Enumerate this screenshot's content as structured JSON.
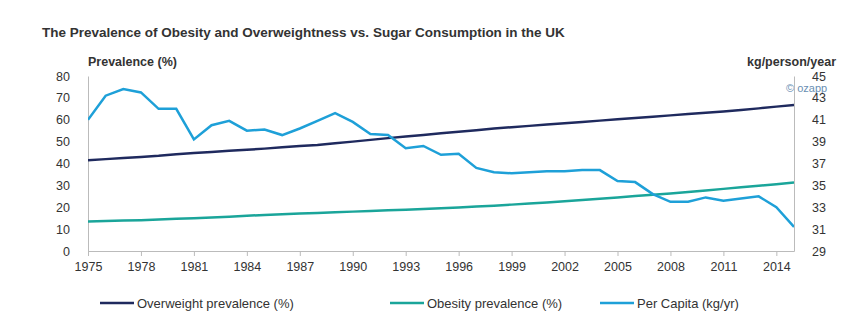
{
  "chart_data": {
    "type": "line",
    "title": "The Prevalence of Obesity and Overweightness vs. Sugar Consumption in the UK",
    "y_label": "Prevalence (%)",
    "y2_label": "kg/person/year",
    "annotations": [
      "© ozapp"
    ],
    "x": [
      1975,
      1976,
      1977,
      1978,
      1979,
      1980,
      1981,
      1982,
      1983,
      1984,
      1985,
      1986,
      1987,
      1988,
      1989,
      1990,
      1991,
      1992,
      1993,
      1994,
      1995,
      1996,
      1997,
      1998,
      1999,
      2000,
      2001,
      2002,
      2003,
      2004,
      2005,
      2006,
      2007,
      2008,
      2009,
      2010,
      2011,
      2012,
      2013,
      2014,
      2015
    ],
    "series": [
      {
        "name": "Overweight prevalence (%)",
        "color": "#1f2a5e",
        "values": [
          41.5,
          42,
          42.5,
          43,
          43.5,
          44.2,
          44.8,
          45.3,
          45.8,
          46.3,
          46.8,
          47.4,
          48,
          48.5,
          49.3,
          50,
          50.8,
          51.6,
          52.3,
          53,
          53.8,
          54.5,
          55.2,
          56,
          56.6,
          57.2,
          57.8,
          58.4,
          59,
          59.6,
          60.2,
          60.8,
          61.4,
          62,
          62.6,
          63.2,
          63.8,
          64.5,
          65.2,
          66,
          66.7
        ]
      },
      {
        "name": "Obesity prevalence (%)",
        "color": "#1aa59a",
        "values": [
          13.5,
          13.7,
          13.9,
          14.1,
          14.4,
          14.7,
          15,
          15.3,
          15.7,
          16.1,
          16.5,
          16.8,
          17.1,
          17.4,
          17.7,
          18,
          18.3,
          18.6,
          18.9,
          19.2,
          19.5,
          19.9,
          20.3,
          20.7,
          21.2,
          21.7,
          22.2,
          22.7,
          23.3,
          23.9,
          24.5,
          25.1,
          25.7,
          26.3,
          27,
          27.7,
          28.4,
          29.1,
          29.8,
          30.5,
          31.3
        ]
      },
      {
        "name": "Per Capita (kg/yr)",
        "color": "#1ea0d8",
        "axis": "y2",
        "values": [
          41.0,
          43.2,
          43.8,
          43.5,
          42.0,
          42.0,
          39.2,
          40.5,
          40.9,
          40.0,
          40.1,
          39.6,
          40.2,
          40.9,
          41.6,
          40.8,
          39.7,
          39.6,
          38.4,
          38.6,
          37.8,
          37.9,
          36.6,
          36.2,
          36.1,
          36.2,
          36.3,
          36.3,
          36.4,
          36.4,
          35.4,
          35.3,
          34.2,
          33.5,
          33.5,
          33.9,
          33.6,
          33.8,
          34.0,
          33.0,
          31.2
        ]
      }
    ],
    "xlim": [
      1975,
      2015
    ],
    "xticks": [
      1975,
      1978,
      1981,
      1984,
      1987,
      1990,
      1993,
      1996,
      1999,
      2002,
      2005,
      2008,
      2011,
      2014
    ],
    "ylim": [
      0,
      80
    ],
    "yticks": [
      0,
      10,
      20,
      30,
      40,
      50,
      60,
      70,
      80
    ],
    "y2lim": [
      29,
      45
    ],
    "y2ticks": [
      29,
      31,
      33,
      35,
      37,
      39,
      41,
      43,
      45
    ],
    "grid": false,
    "legend": "bottom"
  }
}
